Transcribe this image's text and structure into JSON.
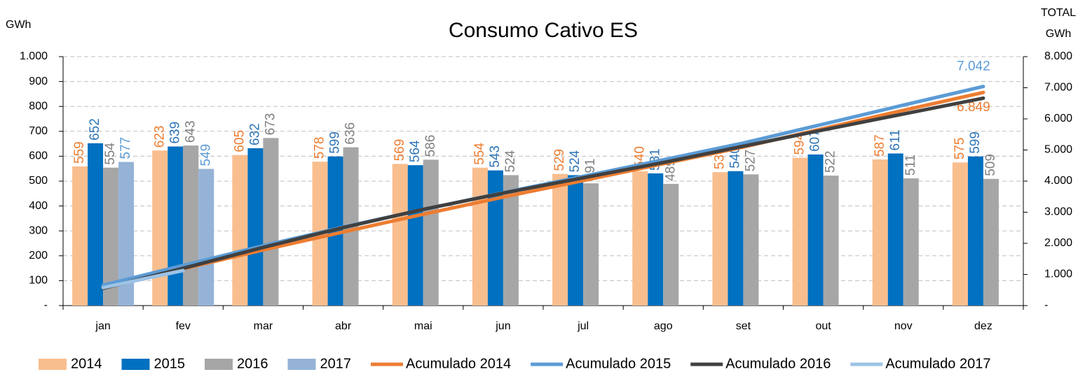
{
  "chart_data": {
    "type": "bar",
    "title": "Consumo Cativo ES",
    "ylabel": "GWh",
    "y2label": [
      "TOTAL",
      "GWh"
    ],
    "categories": [
      "jan",
      "fev",
      "mar",
      "abr",
      "mai",
      "jun",
      "jul",
      "ago",
      "set",
      "out",
      "nov",
      "dez"
    ],
    "ylim": [
      0,
      1000
    ],
    "yticks": [
      {
        "value": 0,
        "label": "-"
      },
      100,
      200,
      300,
      400,
      500,
      600,
      700,
      800,
      900,
      {
        "value": 1000,
        "label": "1.000"
      }
    ],
    "y2lim": [
      0,
      8000
    ],
    "y2ticks": [
      {
        "value": 0,
        "label": "-"
      },
      {
        "value": 1000,
        "label": "1.000"
      },
      {
        "value": 2000,
        "label": "2.000"
      },
      {
        "value": 3000,
        "label": "3.000"
      },
      {
        "value": 4000,
        "label": "4.000"
      },
      {
        "value": 5000,
        "label": "5.000"
      },
      {
        "value": 6000,
        "label": "6.000"
      },
      {
        "value": 7000,
        "label": "7.000"
      },
      {
        "value": 8000,
        "label": "8.000"
      }
    ],
    "grid": true,
    "legend": "bottom",
    "series": [
      {
        "name": "2014",
        "type": "bar",
        "color": "#f9be8e",
        "label_color": "#ed7d31",
        "values": [
          559,
          623,
          605,
          578,
          569,
          554,
          529,
          540,
          536,
          594,
          587,
          575
        ]
      },
      {
        "name": "2015",
        "type": "bar",
        "color": "#0070c0",
        "label_color": "#2e75b6",
        "values": [
          652,
          639,
          632,
          599,
          564,
          543,
          524,
          531,
          540,
          607,
          611,
          599
        ]
      },
      {
        "name": "2016",
        "type": "bar",
        "color": "#a6a6a6",
        "label_color": "#7f7f7f",
        "values": [
          554,
          643,
          673,
          636,
          586,
          524,
          491,
          489,
          527,
          522,
          511,
          509
        ]
      },
      {
        "name": "2017",
        "type": "bar",
        "color": "#95b3d7",
        "label_color": "#5b9bd5",
        "values": [
          577,
          549,
          null,
          null,
          null,
          null,
          null,
          null,
          null,
          null,
          null,
          null
        ]
      },
      {
        "name": "Acumulado 2014",
        "type": "line",
        "axis": "y2",
        "color": "#ed7d31",
        "label_color": "#ed7d31",
        "values": [
          559,
          1182,
          1787,
          2365,
          2934,
          3488,
          4017,
          4557,
          5093,
          5687,
          6274,
          6849
        ],
        "value_labels": [
          null,
          null,
          null,
          null,
          null,
          null,
          null,
          null,
          null,
          null,
          null,
          "6.849"
        ]
      },
      {
        "name": "Acumulado 2015",
        "type": "line",
        "axis": "y2",
        "color": "#5b9bd5",
        "label_color": "#5b9bd5",
        "values": [
          652,
          1291,
          1923,
          2522,
          3086,
          3629,
          4153,
          4684,
          5224,
          5831,
          6442,
          7042
        ],
        "value_labels": [
          null,
          null,
          null,
          null,
          null,
          null,
          null,
          null,
          null,
          null,
          null,
          "7.042"
        ]
      },
      {
        "name": "Acumulado 2016",
        "type": "line",
        "axis": "y2",
        "color": "#404040",
        "values": [
          554,
          1197,
          1870,
          2506,
          3092,
          3616,
          4107,
          4596,
          5123,
          5645,
          6156,
          6665
        ]
      },
      {
        "name": "Acumulado 2017",
        "type": "line",
        "axis": "y2",
        "color": "#9dc3e6",
        "values": [
          577,
          1126,
          null,
          null,
          null,
          null,
          null,
          null,
          null,
          null,
          null,
          null
        ]
      }
    ]
  }
}
